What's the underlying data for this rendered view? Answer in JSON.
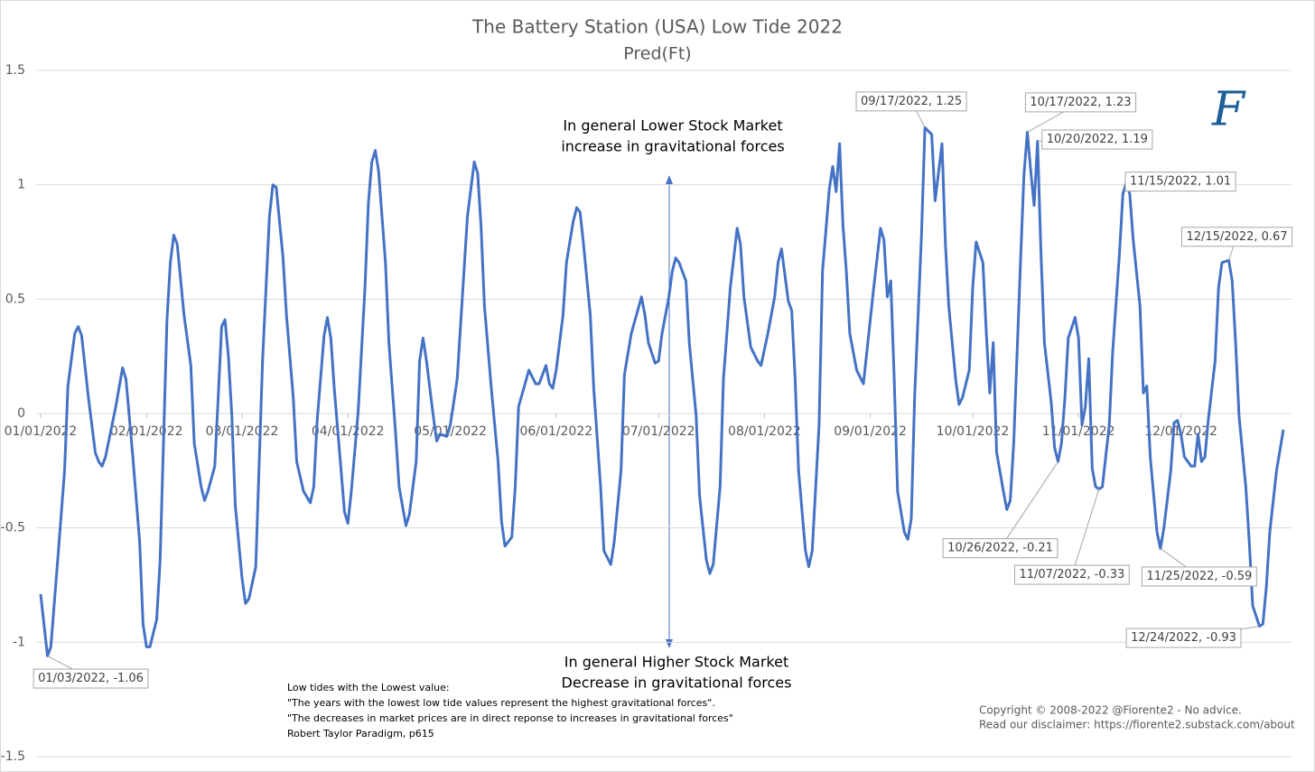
{
  "chart_data": {
    "type": "line",
    "title": "The Battery Station (USA) Low Tide 2022",
    "subtitle": "Pred(Ft)",
    "color": "#4472c4",
    "grid": true,
    "xlim": [
      "01/01/2022",
      "12/31/2022"
    ],
    "xticks": [
      "01/01/2022",
      "02/01/2022",
      "03/01/2022",
      "04/01/2022",
      "05/01/2022",
      "06/01/2022",
      "07/01/2022",
      "08/01/2022",
      "09/01/2022",
      "10/01/2022",
      "11/01/2022",
      "12/01/2022"
    ],
    "ylim": [
      -1.5,
      1.5
    ],
    "yticks": [
      1.5,
      1,
      0.5,
      0,
      -0.5,
      -1,
      -1.5
    ],
    "x": [
      "01/01/2022",
      "01/03/2022",
      "01/04/2022",
      "01/06/2022",
      "01/08/2022",
      "01/09/2022",
      "01/11/2022",
      "01/12/2022",
      "01/13/2022",
      "01/15/2022",
      "01/17/2022",
      "01/18/2022",
      "01/19/2022",
      "01/20/2022",
      "01/23/2022",
      "01/25/2022",
      "01/26/2022",
      "01/28/2022",
      "01/30/2022",
      "01/31/2022",
      "02/01/2022",
      "02/02/2022",
      "02/04/2022",
      "02/05/2022",
      "02/07/2022",
      "02/08/2022",
      "02/09/2022",
      "02/10/2022",
      "02/12/2022",
      "02/14/2022",
      "02/15/2022",
      "02/17/2022",
      "02/18/2022",
      "02/19/2022",
      "02/21/2022",
      "02/22/2022",
      "02/23/2022",
      "02/24/2022",
      "02/25/2022",
      "02/26/2022",
      "02/27/2022",
      "03/01/2022",
      "03/02/2022",
      "03/03/2022",
      "03/05/2022",
      "03/07/2022",
      "03/09/2022",
      "03/10/2022",
      "03/11/2022",
      "03/13/2022",
      "03/14/2022",
      "03/16/2022",
      "03/17/2022",
      "03/19/2022",
      "03/21/2022",
      "03/22/2022",
      "03/23/2022",
      "03/25/2022",
      "03/26/2022",
      "03/27/2022",
      "03/28/2022",
      "03/30/2022",
      "03/31/2022",
      "04/01/2022",
      "04/02/2022",
      "04/04/2022",
      "04/06/2022",
      "04/07/2022",
      "04/08/2022",
      "04/09/2022",
      "04/10/2022",
      "04/12/2022",
      "04/13/2022",
      "04/15/2022",
      "04/16/2022",
      "04/18/2022",
      "04/19/2022",
      "04/21/2022",
      "04/22/2022",
      "04/23/2022",
      "04/24/2022",
      "04/26/2022",
      "04/27/2022",
      "04/28/2022",
      "04/30/2022",
      "05/01/2022",
      "05/03/2022",
      "05/05/2022",
      "05/06/2022",
      "05/08/2022",
      "05/09/2022",
      "05/10/2022",
      "05/11/2022",
      "05/13/2022",
      "05/15/2022",
      "05/16/2022",
      "05/17/2022",
      "05/19/2022",
      "05/20/2022",
      "05/21/2022",
      "05/24/2022",
      "05/26/2022",
      "05/27/2022",
      "05/29/2022",
      "05/30/2022",
      "05/31/2022",
      "06/01/2022",
      "06/03/2022",
      "06/04/2022",
      "06/06/2022",
      "06/07/2022",
      "06/08/2022",
      "06/09/2022",
      "06/11/2022",
      "06/12/2022",
      "06/14/2022",
      "06/15/2022",
      "06/17/2022",
      "06/18/2022",
      "06/20/2022",
      "06/21/2022",
      "06/23/2022",
      "06/26/2022",
      "06/27/2022",
      "06/28/2022",
      "06/30/2022",
      "07/01/2022",
      "07/02/2022",
      "07/04/2022",
      "07/05/2022",
      "07/06/2022",
      "07/07/2022",
      "07/09/2022",
      "07/10/2022",
      "07/12/2022",
      "07/13/2022",
      "07/15/2022",
      "07/16/2022",
      "07/17/2022",
      "07/19/2022",
      "07/20/2022",
      "07/22/2022",
      "07/24/2022",
      "07/25/2022",
      "07/26/2022",
      "07/28/2022",
      "07/30/2022",
      "07/31/2022",
      "08/02/2022",
      "08/04/2022",
      "08/05/2022",
      "08/06/2022",
      "08/08/2022",
      "08/09/2022",
      "08/10/2022",
      "08/11/2022",
      "08/13/2022",
      "08/14/2022",
      "08/15/2022",
      "08/17/2022",
      "08/18/2022",
      "08/20/2022",
      "08/21/2022",
      "08/22/2022",
      "08/23/2022",
      "08/24/2022",
      "08/25/2022",
      "08/26/2022",
      "08/28/2022",
      "08/30/2022",
      "08/31/2022",
      "09/02/2022",
      "09/04/2022",
      "09/05/2022",
      "09/06/2022",
      "09/07/2022",
      "09/08/2022",
      "09/09/2022",
      "09/11/2022",
      "09/12/2022",
      "09/13/2022",
      "09/14/2022",
      "09/16/2022",
      "09/17/2022",
      "09/19/2022",
      "09/20/2022",
      "09/22/2022",
      "09/23/2022",
      "09/24/2022",
      "09/26/2022",
      "09/27/2022",
      "09/28/2022",
      "09/30/2022",
      "10/01/2022",
      "10/02/2022",
      "10/04/2022",
      "10/05/2022",
      "10/06/2022",
      "10/07/2022",
      "10/08/2022",
      "10/10/2022",
      "10/11/2022",
      "10/12/2022",
      "10/13/2022",
      "10/15/2022",
      "10/16/2022",
      "10/17/2022",
      "10/18/2022",
      "10/19/2022",
      "10/20/2022",
      "10/21/2022",
      "10/22/2022",
      "10/24/2022",
      "10/25/2022",
      "10/26/2022",
      "10/27/2022",
      "10/28/2022",
      "10/29/2022",
      "10/31/2022",
      "11/01/2022",
      "11/02/2022",
      "11/03/2022",
      "11/04/2022",
      "11/05/2022",
      "11/06/2022",
      "11/07/2022",
      "11/08/2022",
      "11/10/2022",
      "11/11/2022",
      "11/13/2022",
      "11/14/2022",
      "11/15/2022",
      "11/16/2022",
      "11/17/2022",
      "11/19/2022",
      "11/20/2022",
      "11/21/2022",
      "11/22/2022",
      "11/24/2022",
      "11/25/2022",
      "11/26/2022",
      "11/28/2022",
      "11/29/2022",
      "11/30/2022",
      "12/01/2022",
      "12/02/2022",
      "12/04/2022",
      "12/05/2022",
      "12/06/2022",
      "12/07/2022",
      "12/08/2022",
      "12/09/2022",
      "12/11/2022",
      "12/12/2022",
      "12/13/2022",
      "12/15/2022",
      "12/16/2022",
      "12/17/2022",
      "12/18/2022",
      "12/20/2022",
      "12/21/2022",
      "12/22/2022",
      "12/24/2022",
      "12/25/2022",
      "12/26/2022",
      "12/27/2022",
      "12/29/2022",
      "12/31/2022"
    ],
    "values": [
      -0.79,
      -1.06,
      -1.02,
      -0.64,
      -0.25,
      0.12,
      0.35,
      0.38,
      0.34,
      0.07,
      -0.17,
      -0.21,
      -0.23,
      -0.19,
      0.03,
      0.2,
      0.15,
      -0.19,
      -0.56,
      -0.92,
      -1.02,
      -1.02,
      -0.9,
      -0.64,
      0.41,
      0.66,
      0.78,
      0.74,
      0.43,
      0.21,
      -0.13,
      -0.32,
      -0.38,
      -0.34,
      -0.23,
      0.07,
      0.38,
      0.41,
      0.25,
      -0.01,
      -0.4,
      -0.72,
      -0.83,
      -0.81,
      -0.67,
      0.23,
      0.86,
      1.0,
      0.99,
      0.68,
      0.43,
      0.07,
      -0.21,
      -0.34,
      -0.39,
      -0.32,
      -0.03,
      0.34,
      0.42,
      0.33,
      0.11,
      -0.25,
      -0.43,
      -0.48,
      -0.34,
      0.01,
      0.55,
      0.92,
      1.1,
      1.15,
      1.06,
      0.66,
      0.31,
      -0.09,
      -0.32,
      -0.49,
      -0.44,
      -0.21,
      0.23,
      0.33,
      0.23,
      -0.01,
      -0.12,
      -0.09,
      -0.1,
      -0.05,
      0.15,
      0.62,
      0.86,
      1.1,
      1.05,
      0.82,
      0.47,
      0.11,
      -0.21,
      -0.47,
      -0.58,
      -0.54,
      -0.32,
      0.03,
      0.19,
      0.13,
      0.13,
      0.21,
      0.13,
      0.11,
      0.19,
      0.43,
      0.66,
      0.84,
      0.9,
      0.88,
      0.74,
      0.43,
      0.11,
      -0.32,
      -0.6,
      -0.66,
      -0.56,
      -0.25,
      0.17,
      0.35,
      0.51,
      0.43,
      0.31,
      0.22,
      0.23,
      0.35,
      0.51,
      0.62,
      0.68,
      0.66,
      0.58,
      0.31,
      -0.01,
      -0.36,
      -0.64,
      -0.7,
      -0.66,
      -0.32,
      0.15,
      0.55,
      0.81,
      0.74,
      0.51,
      0.29,
      0.23,
      0.21,
      0.35,
      0.51,
      0.66,
      0.72,
      0.49,
      0.45,
      0.15,
      -0.25,
      -0.6,
      -0.67,
      -0.6,
      -0.05,
      0.62,
      0.98,
      1.08,
      0.97,
      1.18,
      0.82,
      0.62,
      0.35,
      0.19,
      0.13,
      0.27,
      0.55,
      0.81,
      0.76,
      0.51,
      0.58,
      0.15,
      -0.34,
      -0.52,
      -0.55,
      -0.46,
      0.07,
      0.78,
      1.25,
      1.22,
      0.93,
      1.18,
      0.74,
      0.47,
      0.15,
      0.04,
      0.07,
      0.19,
      0.55,
      0.75,
      0.66,
      0.35,
      0.09,
      0.31,
      -0.17,
      -0.34,
      -0.42,
      -0.38,
      -0.13,
      0.66,
      1.04,
      1.23,
      1.06,
      0.91,
      1.19,
      0.7,
      0.31,
      0.05,
      -0.15,
      -0.21,
      -0.13,
      0.07,
      0.33,
      0.42,
      0.33,
      -0.05,
      0.03,
      0.24,
      -0.24,
      -0.32,
      -0.33,
      -0.32,
      -0.05,
      0.27,
      0.7,
      0.96,
      1.01,
      0.96,
      0.76,
      0.47,
      0.09,
      0.12,
      -0.19,
      -0.52,
      -0.59,
      -0.5,
      -0.25,
      -0.04,
      -0.03,
      -0.09,
      -0.19,
      -0.23,
      -0.23,
      -0.09,
      -0.21,
      -0.19,
      -0.03,
      0.23,
      0.55,
      0.66,
      0.67,
      0.58,
      0.31,
      -0.01,
      -0.32,
      -0.56,
      -0.84,
      -0.93,
      -0.92,
      -0.76,
      -0.52,
      -0.25,
      -0.07
    ],
    "value_labels": [
      null,
      "01/03/2022, -1.06",
      null,
      null,
      null,
      null,
      null,
      null,
      null,
      null,
      null,
      null,
      null,
      null,
      null,
      null,
      null,
      null,
      null,
      null,
      null,
      null,
      null,
      null,
      null,
      null,
      null,
      null,
      null,
      null,
      null,
      null,
      null,
      null,
      null,
      null,
      null,
      null,
      null,
      null,
      null,
      null,
      null,
      null,
      null,
      null,
      null,
      null,
      null,
      null,
      null,
      null,
      null,
      null,
      null,
      null,
      null,
      null,
      null,
      null,
      null,
      null,
      null,
      null,
      null,
      null,
      null,
      null,
      null,
      null,
      null,
      null,
      null,
      null,
      null,
      null,
      null,
      null,
      null,
      null,
      null,
      null,
      null,
      null,
      null,
      null,
      null,
      null,
      null,
      null,
      null,
      null,
      null,
      null,
      null,
      null,
      null,
      null,
      null,
      null,
      null,
      null,
      null,
      null,
      null,
      null,
      null,
      null,
      null,
      null,
      null,
      null,
      null,
      null,
      null,
      null,
      null,
      null,
      null,
      null,
      null,
      null,
      null,
      null,
      null,
      null,
      null,
      null,
      null,
      null,
      null,
      null,
      null,
      null,
      null,
      null,
      null,
      null,
      null,
      null,
      null,
      null,
      null,
      null,
      null,
      null,
      null,
      null,
      null,
      null,
      null,
      null,
      null,
      null,
      null,
      null,
      null,
      null,
      null,
      null,
      null,
      null,
      null,
      null,
      null,
      null,
      null,
      null,
      null,
      null,
      null,
      null,
      null,
      null,
      null,
      null,
      null,
      null,
      null,
      null,
      null,
      null,
      null,
      "09/17/2022, 1.25",
      null,
      null,
      null,
      null,
      null,
      null,
      null,
      null,
      null,
      null,
      null,
      null,
      null,
      null,
      null,
      null,
      null,
      null,
      null,
      null,
      null,
      null,
      "10/17/2022, 1.23",
      null,
      null,
      "10/20/2022, 1.19",
      null,
      null,
      null,
      null,
      "10/26/2022, -0.21",
      null,
      null,
      null,
      null,
      null,
      null,
      null,
      null,
      null,
      null,
      "11/07/2022, -0.33",
      null,
      null,
      null,
      null,
      null,
      "11/15/2022, 1.01",
      null,
      null,
      null,
      null,
      null,
      null,
      null,
      "11/25/2022, -0.59",
      null,
      null,
      null,
      null,
      null,
      null,
      null,
      null,
      null,
      null,
      null,
      null,
      null,
      null,
      null,
      "12/15/2022, 0.67",
      null,
      null,
      null,
      null,
      null,
      null,
      "12/24/2022, -0.93",
      null,
      null,
      null,
      null,
      null
    ],
    "annotations": [
      "In general Lower Stock Market",
      "increase in gravitational forces",
      "In general Higher Stock Market",
      "Decrease in gravitational forces"
    ],
    "notes": [
      "Low tides with the Lowest value:",
      "\"The years with the lowest low tide values represent the highest gravitational forces\".",
      "\"The decreases in market prices are in direct reponse to increases in gravitational forces\"",
      "Robert Taylor Paradigm, p615"
    ],
    "copyright": [
      "Copyright © 2008-2022 @Fiorente2 -  No advice.",
      "Read our disclaimer: https://fiorente2.substack.com/about"
    ],
    "logo": "F"
  }
}
